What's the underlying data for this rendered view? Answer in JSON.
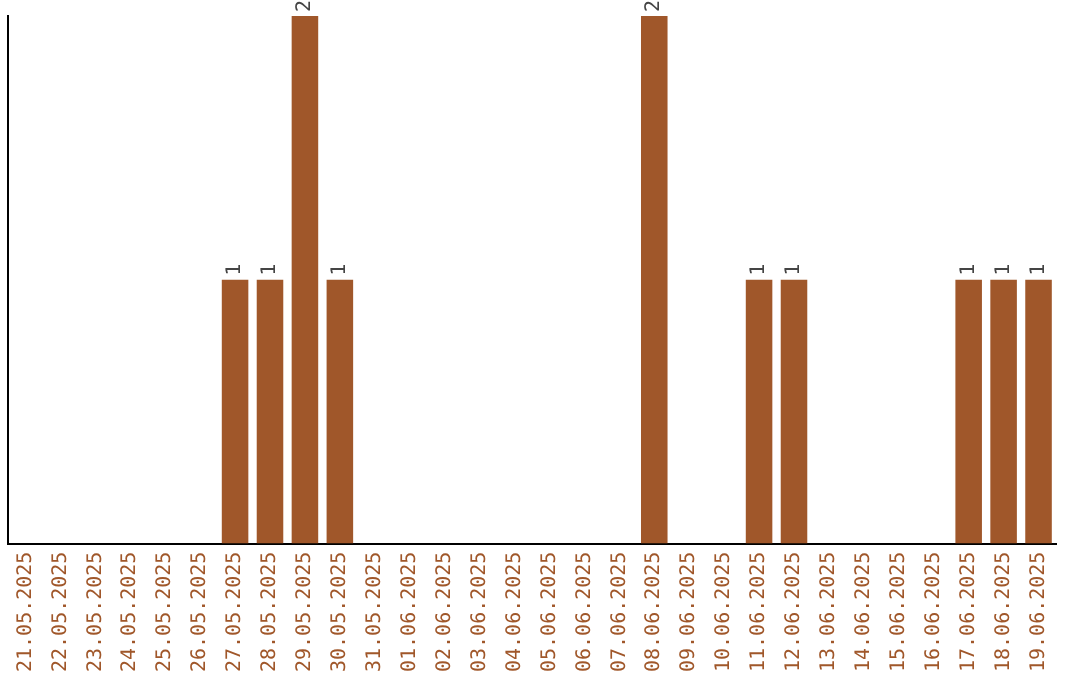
{
  "chart_data": {
    "type": "bar",
    "categories": [
      "21.05.2025",
      "22.05.2025",
      "23.05.2025",
      "24.05.2025",
      "25.05.2025",
      "26.05.2025",
      "27.05.2025",
      "28.05.2025",
      "29.05.2025",
      "30.05.2025",
      "31.05.2025",
      "01.06.2025",
      "02.06.2025",
      "03.06.2025",
      "04.06.2025",
      "05.06.2025",
      "06.06.2025",
      "07.06.2025",
      "08.06.2025",
      "09.06.2025",
      "10.06.2025",
      "11.06.2025",
      "12.06.2025",
      "13.06.2025",
      "14.06.2025",
      "15.06.2025",
      "16.06.2025",
      "17.06.2025",
      "18.06.2025",
      "19.06.2025"
    ],
    "values": [
      0,
      0,
      0,
      0,
      0,
      0,
      1,
      1,
      2,
      1,
      0,
      0,
      0,
      0,
      0,
      0,
      0,
      0,
      2,
      0,
      0,
      1,
      1,
      0,
      0,
      0,
      0,
      1,
      1,
      1
    ],
    "value_labels": [
      null,
      null,
      null,
      null,
      null,
      null,
      "1",
      "1",
      "2",
      "1",
      null,
      null,
      null,
      null,
      null,
      null,
      null,
      null,
      "2",
      null,
      null,
      "1",
      "1",
      null,
      null,
      null,
      null,
      "1",
      "1",
      "1"
    ],
    "color": "#a0572a"
  }
}
